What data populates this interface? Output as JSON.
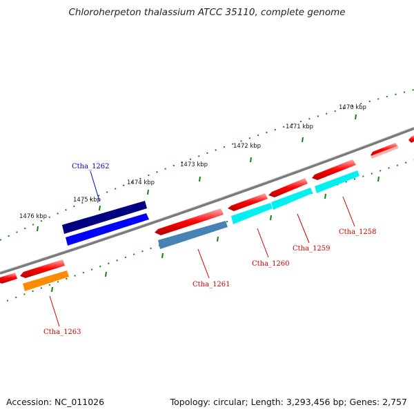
{
  "title": "Chloroherpeton thalassium ATCC 35110, complete genome",
  "footer": {
    "accession": "Accession: NC_011026",
    "summary": "Topology: circular; Length: 3,293,456 bp; Genes: 2,757"
  },
  "scale_labels": [
    "1470 kbp",
    "1471 kbp",
    "1472 kbp",
    "1473 kbp",
    "1474 kbp",
    "1475 kbp",
    "1476 kbp"
  ],
  "gene_labels": {
    "ctha_1258": "Ctha_1258",
    "ctha_1259": "Ctha_1259",
    "ctha_1260": "Ctha_1260",
    "ctha_1261": "Ctha_1261",
    "ctha_1262": "Ctha_1262",
    "ctha_1263": "Ctha_1263"
  },
  "colors": {
    "backbone": "#808080",
    "tick": "#1a7a1a",
    "red_gene": "#ff0000",
    "cyan_gene": "#00ffff",
    "steelblue_gene": "#4682b4",
    "navy_gene": "#000080",
    "blue_gene": "#0000ff",
    "orange_gene": "#ff8c00",
    "label_red": "#cc0000",
    "label_blue": "#0000cc"
  }
}
